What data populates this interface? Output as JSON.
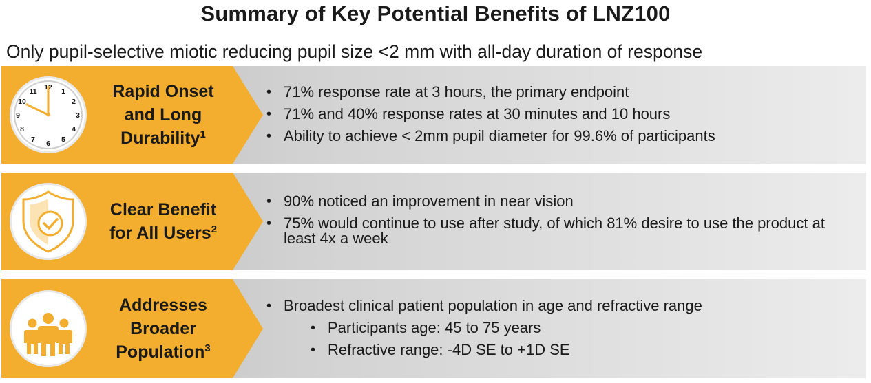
{
  "title": "Summary of Key Potential Benefits of LNZ100",
  "subtitle": "Only pupil-selective miotic reducing pupil size <2 mm with all-day duration of response",
  "colors": {
    "accent": "#f3ae2f",
    "panel_dark": "#b9b9b9",
    "panel_light": "#ececec"
  },
  "rows": [
    {
      "icon": "clock-icon",
      "heading_lines": [
        "Rapid Onset",
        "and Long",
        "Durability"
      ],
      "heading_sup": "1",
      "clock_numbers": [
        "12",
        "1",
        "2",
        "3",
        "4",
        "5",
        "6",
        "7",
        "8",
        "9",
        "10",
        "11"
      ],
      "bullets": [
        "71% response rate at 3 hours, the primary endpoint",
        "71% and 40% response rates at 30 minutes and 10 hours",
        "Ability to achieve < 2mm pupil diameter for 99.6% of participants"
      ]
    },
    {
      "icon": "shield-check-icon",
      "heading_lines": [
        "Clear Benefit",
        "for All Users"
      ],
      "heading_sup": "2",
      "bullets": [
        "90% noticed an improvement in near vision",
        "75% would continue to use after study, of which 81% desire to use the product at least 4x a week"
      ]
    },
    {
      "icon": "people-group-icon",
      "heading_lines": [
        "Addresses",
        "Broader",
        "Population"
      ],
      "heading_sup": "3",
      "bullets": [
        "Broadest clinical patient population in age and refractive range"
      ],
      "sub_bullets": [
        "Participants age: 45 to 75 years",
        "Refractive range: -4D SE to +1D SE"
      ]
    }
  ]
}
